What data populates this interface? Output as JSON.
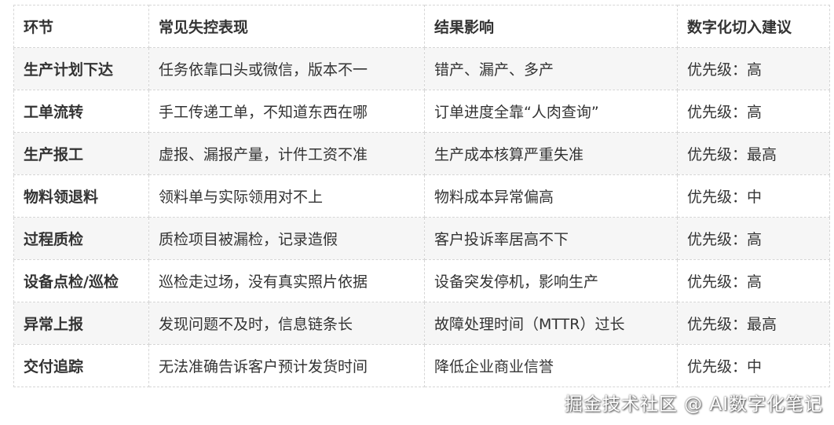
{
  "table": {
    "headers": [
      "环节",
      "常见失控表现",
      "结果影响",
      "数字化切入建议"
    ],
    "rows": [
      [
        "生产计划下达",
        "任务依靠口头或微信，版本不一",
        "错产、漏产、多产",
        "优先级：高"
      ],
      [
        "工单流转",
        "手工传递工单，不知道东西在哪",
        "订单进度全靠“人肉查询”",
        "优先级：高"
      ],
      [
        "生产报工",
        "虚报、漏报产量，计件工资不准",
        "生产成本核算严重失准",
        "优先级：最高"
      ],
      [
        "物料领退料",
        "领料单与实际领用对不上",
        "物料成本异常偏高",
        "优先级：中"
      ],
      [
        "过程质检",
        "质检项目被漏检，记录造假",
        "客户投诉率居高不下",
        "优先级：高"
      ],
      [
        "设备点检/巡检",
        "巡检走过场，没有真实照片依据",
        "设备突发停机，影响生产",
        "优先级：高"
      ],
      [
        "异常上报",
        "发现问题不及时，信息链条长",
        "故障处理时间（MTTR）过长",
        "优先级：最高"
      ],
      [
        "交付追踪",
        "无法准确告诉客户预计发货时间",
        "降低企业商业信誉",
        "优先级：中"
      ]
    ]
  },
  "watermark": "掘金技术社区 @ AI数字化笔记"
}
